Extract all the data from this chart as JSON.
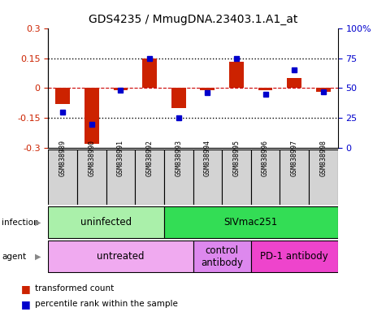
{
  "title": "GDS4235 / MmugDNA.23403.1.A1_at",
  "samples": [
    "GSM838989",
    "GSM838990",
    "GSM838991",
    "GSM838992",
    "GSM838993",
    "GSM838994",
    "GSM838995",
    "GSM838996",
    "GSM838997",
    "GSM838998"
  ],
  "red_values": [
    -0.08,
    -0.28,
    -0.01,
    0.148,
    -0.1,
    -0.01,
    0.13,
    -0.01,
    0.05,
    -0.02
  ],
  "blue_values_pct": [
    30,
    20,
    48,
    75,
    25,
    46,
    75,
    45,
    65,
    47
  ],
  "ylim": [
    -0.3,
    0.3
  ],
  "yticks_left": [
    -0.3,
    -0.15,
    0,
    0.15,
    0.3
  ],
  "yticks_right": [
    0,
    25,
    50,
    75,
    100
  ],
  "infection_groups": [
    {
      "label": "uninfected",
      "start": 0,
      "end": 4,
      "color": "#aaf0aa"
    },
    {
      "label": "SIVmac251",
      "start": 4,
      "end": 10,
      "color": "#33dd55"
    }
  ],
  "agent_groups": [
    {
      "label": "untreated",
      "start": 0,
      "end": 5,
      "color": "#f0aaf0"
    },
    {
      "label": "control\nantibody",
      "start": 5,
      "end": 7,
      "color": "#dd88ee"
    },
    {
      "label": "PD-1 antibody",
      "start": 7,
      "end": 10,
      "color": "#ee44cc"
    }
  ],
  "red_color": "#cc2200",
  "blue_color": "#0000cc",
  "hline_color": "#cc0000",
  "dotted_color": "#000000",
  "bg_color": "#ffffff",
  "bar_width": 0.5,
  "blue_marker_size": 5,
  "legend_red_color": "#cc2200",
  "legend_blue_color": "#0000cc"
}
